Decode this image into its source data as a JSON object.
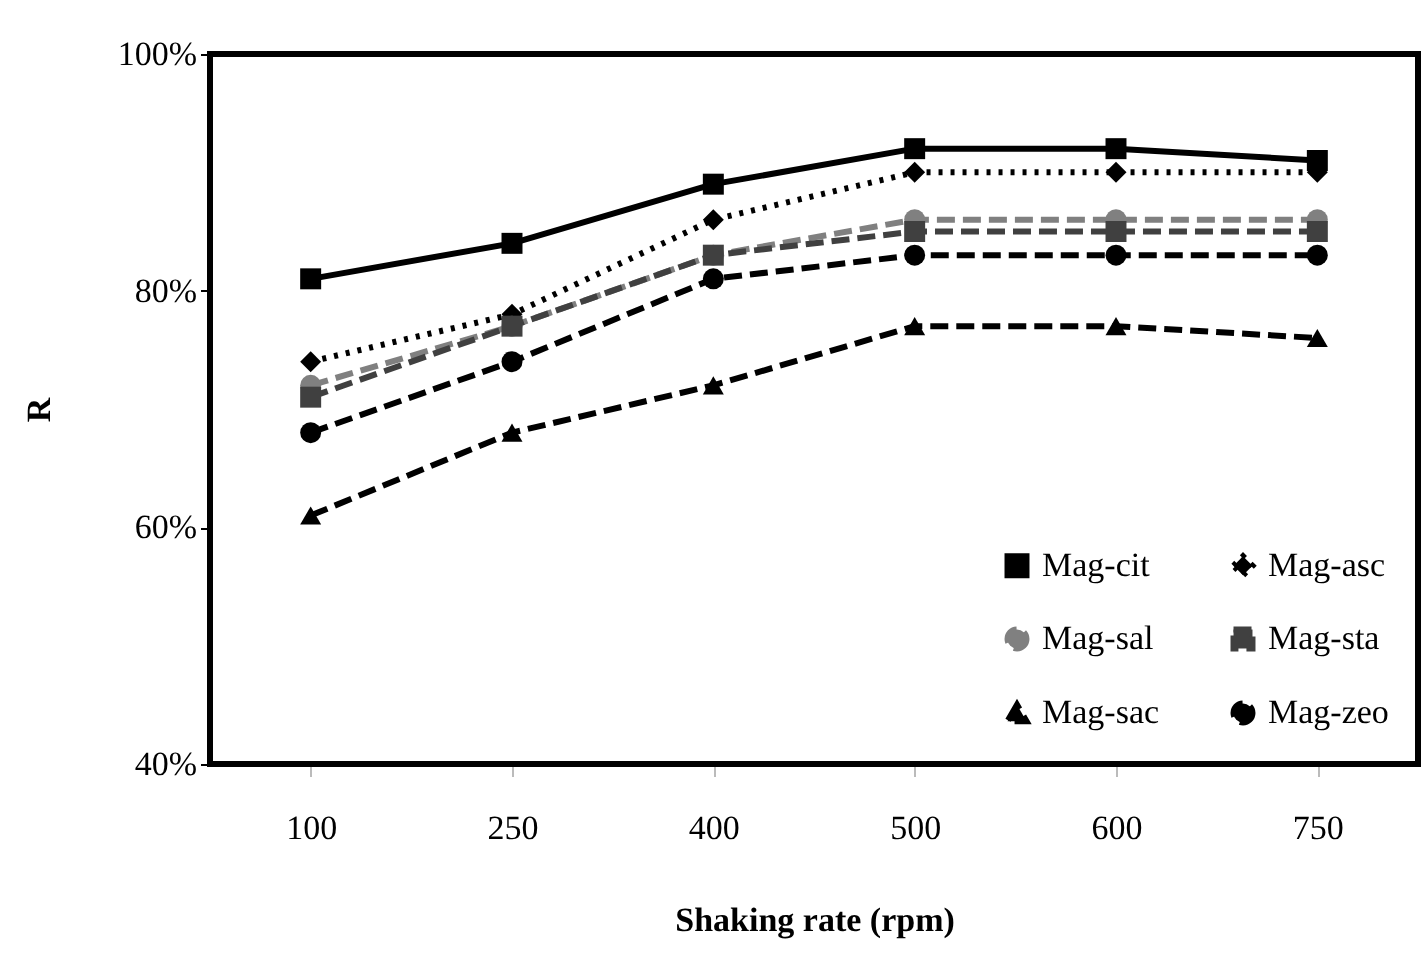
{
  "chart_data": {
    "type": "line",
    "xlabel": "Shaking rate (rpm)",
    "ylabel": "R",
    "categories": [
      "100",
      "250",
      "400",
      "500",
      "600",
      "750"
    ],
    "ylim": [
      40,
      100
    ],
    "yticks": [
      {
        "value": 40,
        "label": "40%"
      },
      {
        "value": 60,
        "label": "60%"
      },
      {
        "value": 80,
        "label": "80%"
      },
      {
        "value": 100,
        "label": "100%"
      }
    ],
    "legend": "bottom right",
    "grid": false,
    "series": [
      {
        "name": "Mag-cit",
        "color": "#000000",
        "marker": "square",
        "line_style": "solid",
        "values": [
          81,
          84,
          89,
          92,
          92,
          91
        ]
      },
      {
        "name": "Mag-asc",
        "color": "#000000",
        "marker": "diamond",
        "line_style": "dotted",
        "values": [
          74,
          78,
          86,
          90,
          90,
          90
        ]
      },
      {
        "name": "Mag-sal",
        "color": "#808080",
        "marker": "circle",
        "line_style": "dashed",
        "values": [
          72,
          77,
          83,
          86,
          86,
          86
        ]
      },
      {
        "name": "Mag-sta",
        "color": "#404040",
        "marker": "square",
        "line_style": "dashed",
        "values": [
          71,
          77,
          83,
          85,
          85,
          85
        ]
      },
      {
        "name": "Mag-sac",
        "color": "#000000",
        "marker": "triangle",
        "line_style": "dashed",
        "values": [
          61,
          68,
          72,
          77,
          77,
          76
        ]
      },
      {
        "name": "Mag-zeo",
        "color": "#000000",
        "marker": "circle",
        "line_style": "dashed",
        "values": [
          68,
          74,
          81,
          83,
          83,
          83
        ]
      }
    ]
  }
}
